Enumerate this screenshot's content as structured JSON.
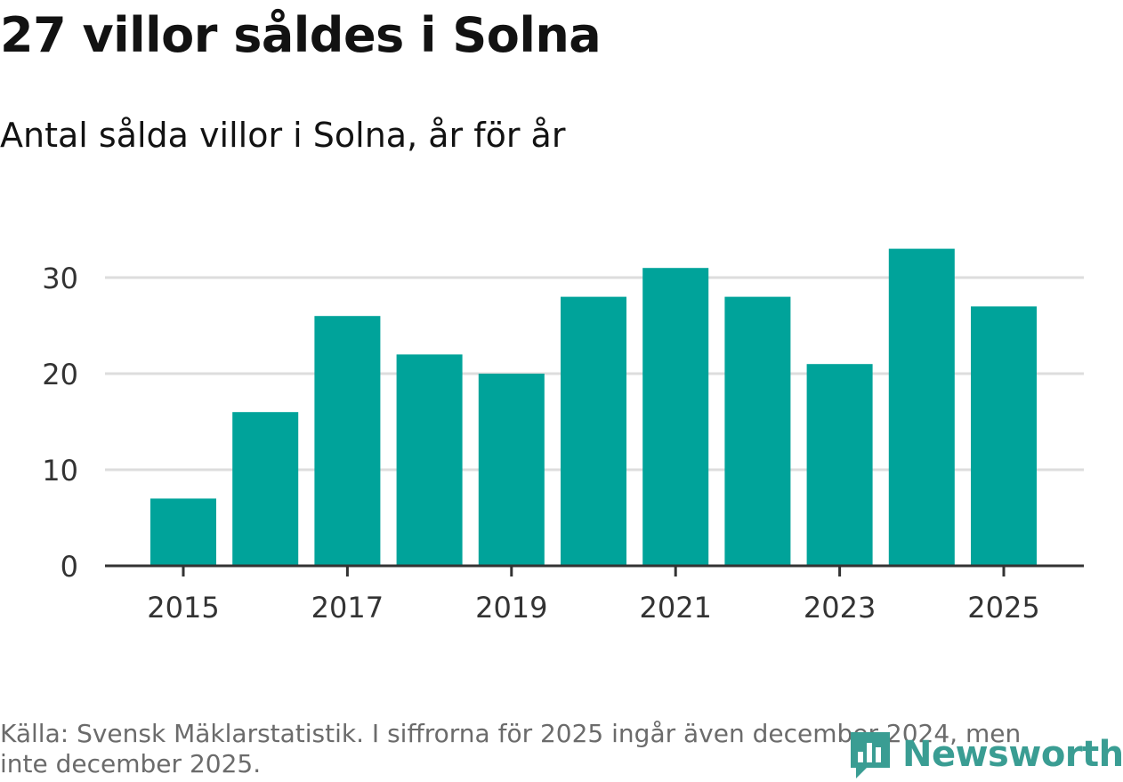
{
  "chart_data": {
    "type": "bar",
    "title": "27 villor såldes i Solna",
    "subtitle": "Antal sålda villor i Solna, år för år",
    "categories": [
      "2015",
      "2016",
      "2017",
      "2018",
      "2019",
      "2020",
      "2021",
      "2022",
      "2023",
      "2024",
      "2025"
    ],
    "values": [
      7,
      16,
      26,
      22,
      20,
      28,
      31,
      28,
      21,
      33,
      27
    ],
    "x_tick_labels": [
      "2015",
      "2017",
      "2019",
      "2021",
      "2023",
      "2025"
    ],
    "y_ticks": [
      0,
      10,
      20,
      30
    ],
    "ylim": [
      0,
      34
    ],
    "xlabel": "",
    "ylabel": "",
    "grid": true,
    "bar_color": "#00a39a",
    "grid_color": "#dddddd",
    "axis_color": "#333333"
  },
  "source": "Källa: Svensk Mäklarstatistik. I siffrorna för 2025 ingår även december 2024, men inte december 2025.",
  "logo": {
    "text": "Newsworthy",
    "color": "#3a9d93"
  }
}
